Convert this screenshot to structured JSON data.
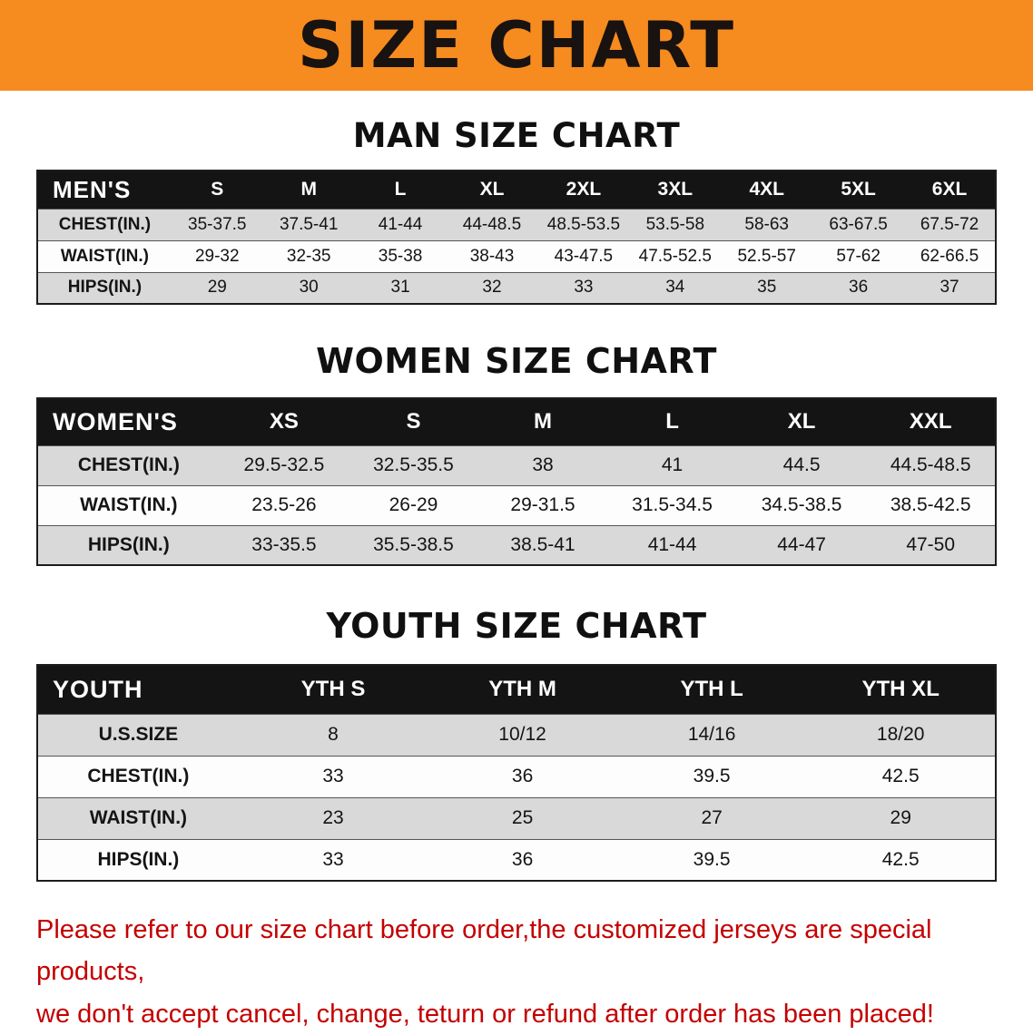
{
  "banner": {
    "title": "SIZE CHART"
  },
  "colors": {
    "banner_bg": "#f68b1f",
    "header_bg": "#141414",
    "row_shade": "#d9d9d9",
    "row_plain": "#fdfdfd",
    "notice_text": "#c40000"
  },
  "sections": [
    {
      "id": "men",
      "title": "MAN SIZE CHART",
      "header_label": "MEN'S",
      "columns": [
        "S",
        "M",
        "L",
        "XL",
        "2XL",
        "3XL",
        "4XL",
        "5XL",
        "6XL"
      ],
      "rows": [
        {
          "label": "CHEST(IN.)",
          "values": [
            "35-37.5",
            "37.5-41",
            "41-44",
            "44-48.5",
            "48.5-53.5",
            "53.5-58",
            "58-63",
            "63-67.5",
            "67.5-72"
          ]
        },
        {
          "label": "WAIST(IN.)",
          "values": [
            "29-32",
            "32-35",
            "35-38",
            "38-43",
            "43-47.5",
            "47.5-52.5",
            "52.5-57",
            "57-62",
            "62-66.5"
          ]
        },
        {
          "label": "HIPS(IN.)",
          "values": [
            "29",
            "30",
            "31",
            "32",
            "33",
            "34",
            "35",
            "36",
            "37"
          ]
        }
      ]
    },
    {
      "id": "women",
      "title": "WOMEN SIZE CHART",
      "header_label": "WOMEN'S",
      "columns": [
        "XS",
        "S",
        "M",
        "L",
        "XL",
        "XXL"
      ],
      "rows": [
        {
          "label": "CHEST(IN.)",
          "values": [
            "29.5-32.5",
            "32.5-35.5",
            "38",
            "41",
            "44.5",
            "44.5-48.5"
          ]
        },
        {
          "label": "WAIST(IN.)",
          "values": [
            "23.5-26",
            "26-29",
            "29-31.5",
            "31.5-34.5",
            "34.5-38.5",
            "38.5-42.5"
          ]
        },
        {
          "label": "HIPS(IN.)",
          "values": [
            "33-35.5",
            "35.5-38.5",
            "38.5-41",
            "41-44",
            "44-47",
            "47-50"
          ]
        }
      ]
    },
    {
      "id": "youth",
      "title": "YOUTH SIZE CHART",
      "header_label": "YOUTH",
      "columns": [
        "YTH S",
        "YTH M",
        "YTH L",
        "YTH XL"
      ],
      "rows": [
        {
          "label": "U.S.SIZE",
          "values": [
            "8",
            "10/12",
            "14/16",
            "18/20"
          ]
        },
        {
          "label": "CHEST(IN.)",
          "values": [
            "33",
            "36",
            "39.5",
            "42.5"
          ]
        },
        {
          "label": "WAIST(IN.)",
          "values": [
            "23",
            "25",
            "27",
            "29"
          ]
        },
        {
          "label": "HIPS(IN.)",
          "values": [
            "33",
            "36",
            "39.5",
            "42.5"
          ]
        }
      ]
    }
  ],
  "footer": {
    "lines": [
      "Please refer to our size chart before order,the customized jerseys are special products,",
      "we don't accept cancel, change, teturn or refund after order has been placed!"
    ]
  }
}
